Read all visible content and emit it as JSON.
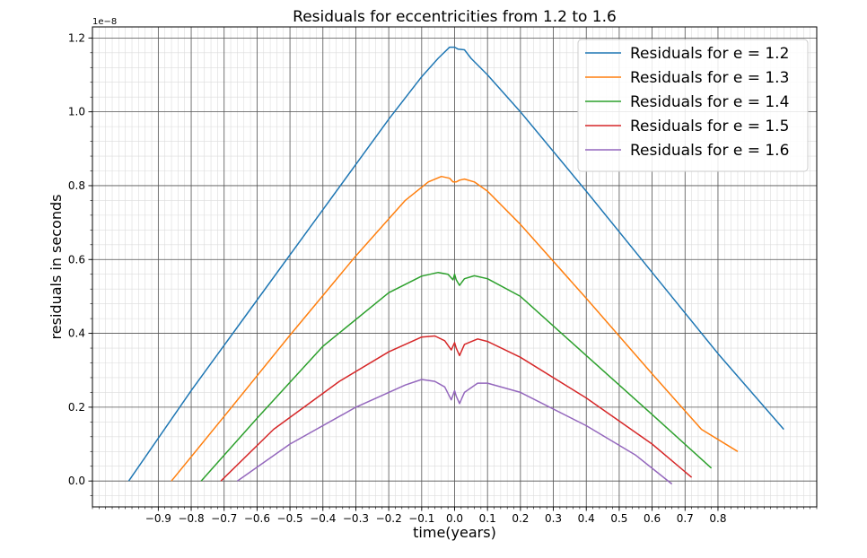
{
  "chart_data": {
    "type": "line",
    "title": "Residuals for eccentricities from 1.2 to 1.6",
    "xlabel": "time(years)",
    "ylabel": "residuals in seconds",
    "y_offset_label": "1e−8",
    "xlim": [
      -1.1,
      1.1
    ],
    "ylim": [
      -0.07,
      1.23
    ],
    "x_ticks": [
      -0.9,
      -0.8,
      -0.7,
      -0.6,
      -0.5,
      -0.4,
      -0.3,
      -0.2,
      -0.1,
      0.0,
      0.1,
      0.2,
      0.3,
      0.4,
      0.5,
      0.6,
      0.7,
      0.8
    ],
    "x_tick_labels": [
      "−0.9",
      "−0.8",
      "−0.7",
      "−0.6",
      "−0.5",
      "−0.4",
      "−0.3",
      "−0.2",
      "−0.1",
      "0.0",
      "0.1",
      "0.2",
      "0.3",
      "0.4",
      "0.5",
      "0.6",
      "0.7",
      "0.8"
    ],
    "y_ticks": [
      0.0,
      0.2,
      0.4,
      0.6,
      0.8,
      1.0,
      1.2
    ],
    "y_tick_labels": [
      "0.0",
      "0.2",
      "0.4",
      "0.6",
      "0.8",
      "1.0",
      "1.2"
    ],
    "grid": "major and minor",
    "legend_position": "top-right",
    "series": [
      {
        "name": "Residuals for e = 1.2",
        "color": "#1f77b4",
        "points": [
          [
            -0.99,
            0.0
          ],
          [
            -0.8,
            0.245
          ],
          [
            -0.6,
            0.49
          ],
          [
            -0.4,
            0.735
          ],
          [
            -0.2,
            0.98
          ],
          [
            -0.1,
            1.095
          ],
          [
            -0.05,
            1.145
          ],
          [
            -0.015,
            1.175
          ],
          [
            0.0,
            1.175
          ],
          [
            0.01,
            1.17
          ],
          [
            0.03,
            1.168
          ],
          [
            0.05,
            1.145
          ],
          [
            0.1,
            1.1
          ],
          [
            0.2,
            1.0
          ],
          [
            0.4,
            0.785
          ],
          [
            0.6,
            0.565
          ],
          [
            0.8,
            0.345
          ],
          [
            1.0,
            0.14
          ]
        ]
      },
      {
        "name": "Residuals for e = 1.3",
        "color": "#ff7f0e",
        "points": [
          [
            -0.86,
            0.0
          ],
          [
            -0.7,
            0.175
          ],
          [
            -0.5,
            0.395
          ],
          [
            -0.3,
            0.61
          ],
          [
            -0.15,
            0.76
          ],
          [
            -0.08,
            0.81
          ],
          [
            -0.04,
            0.825
          ],
          [
            -0.015,
            0.82
          ],
          [
            -0.005,
            0.81
          ],
          [
            0.005,
            0.81
          ],
          [
            0.015,
            0.815
          ],
          [
            0.03,
            0.818
          ],
          [
            0.06,
            0.81
          ],
          [
            0.1,
            0.785
          ],
          [
            0.2,
            0.695
          ],
          [
            0.4,
            0.495
          ],
          [
            0.6,
            0.29
          ],
          [
            0.75,
            0.14
          ],
          [
            0.86,
            0.08
          ]
        ]
      },
      {
        "name": "Residuals for e = 1.4",
        "color": "#2ca02c",
        "points": [
          [
            -0.77,
            0.0
          ],
          [
            -0.6,
            0.17
          ],
          [
            -0.4,
            0.365
          ],
          [
            -0.2,
            0.51
          ],
          [
            -0.1,
            0.555
          ],
          [
            -0.05,
            0.565
          ],
          [
            -0.02,
            0.56
          ],
          [
            -0.005,
            0.545
          ],
          [
            0.0,
            0.56
          ],
          [
            0.005,
            0.545
          ],
          [
            0.015,
            0.53
          ],
          [
            0.03,
            0.548
          ],
          [
            0.06,
            0.556
          ],
          [
            0.1,
            0.548
          ],
          [
            0.2,
            0.5
          ],
          [
            0.4,
            0.34
          ],
          [
            0.6,
            0.18
          ],
          [
            0.78,
            0.035
          ]
        ]
      },
      {
        "name": "Residuals for e = 1.5",
        "color": "#d62728",
        "points": [
          [
            -0.71,
            0.0
          ],
          [
            -0.55,
            0.14
          ],
          [
            -0.35,
            0.27
          ],
          [
            -0.2,
            0.35
          ],
          [
            -0.1,
            0.39
          ],
          [
            -0.06,
            0.393
          ],
          [
            -0.03,
            0.38
          ],
          [
            -0.01,
            0.355
          ],
          [
            0.0,
            0.375
          ],
          [
            0.005,
            0.36
          ],
          [
            0.015,
            0.34
          ],
          [
            0.03,
            0.37
          ],
          [
            0.07,
            0.385
          ],
          [
            0.1,
            0.378
          ],
          [
            0.2,
            0.335
          ],
          [
            0.4,
            0.225
          ],
          [
            0.6,
            0.1
          ],
          [
            0.72,
            0.01
          ]
        ]
      },
      {
        "name": "Residuals for e = 1.6",
        "color": "#9467bd",
        "points": [
          [
            -0.66,
            0.0
          ],
          [
            -0.5,
            0.1
          ],
          [
            -0.3,
            0.2
          ],
          [
            -0.15,
            0.26
          ],
          [
            -0.1,
            0.275
          ],
          [
            -0.06,
            0.27
          ],
          [
            -0.03,
            0.255
          ],
          [
            -0.01,
            0.22
          ],
          [
            0.0,
            0.245
          ],
          [
            0.005,
            0.23
          ],
          [
            0.015,
            0.21
          ],
          [
            0.03,
            0.24
          ],
          [
            0.07,
            0.265
          ],
          [
            0.1,
            0.265
          ],
          [
            0.2,
            0.24
          ],
          [
            0.4,
            0.15
          ],
          [
            0.55,
            0.07
          ],
          [
            0.66,
            -0.008
          ]
        ]
      }
    ]
  }
}
